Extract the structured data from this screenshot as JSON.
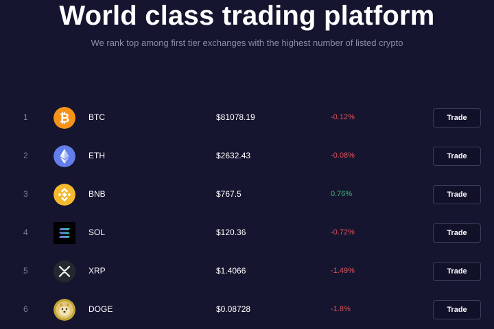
{
  "hero": {
    "title": "World class trading platform",
    "subtitle": "We rank top among first tier exchanges with the highest number of listed crypto"
  },
  "market": {
    "rows": [
      {
        "rank": "1",
        "symbol": "BTC",
        "price": "$81078.19",
        "change": "-0.12%",
        "trend": "down",
        "icon": "bitcoin-icon",
        "color": "#f7931a",
        "trade_label": "Trade"
      },
      {
        "rank": "2",
        "symbol": "ETH",
        "price": "$2632.43",
        "change": "-0.08%",
        "trend": "down",
        "icon": "ethereum-icon",
        "color": "#627eea",
        "trade_label": "Trade"
      },
      {
        "rank": "3",
        "symbol": "BNB",
        "price": "$767.5",
        "change": "0.76%",
        "trend": "up",
        "icon": "bnb-icon",
        "color": "#f3ba2f",
        "trade_label": "Trade"
      },
      {
        "rank": "4",
        "symbol": "SOL",
        "price": "$120.36",
        "change": "-0.72%",
        "trend": "down",
        "icon": "solana-icon",
        "color": "#000000",
        "trade_label": "Trade"
      },
      {
        "rank": "5",
        "symbol": "XRP",
        "price": "$1.4066",
        "change": "-1.49%",
        "trend": "down",
        "icon": "xrp-icon",
        "color": "#23292f",
        "trade_label": "Trade"
      },
      {
        "rank": "6",
        "symbol": "DOGE",
        "price": "$0.08728",
        "change": "-1.8%",
        "trend": "down",
        "icon": "dogecoin-icon",
        "color": "#c2a633",
        "trade_label": "Trade"
      }
    ]
  },
  "colors": {
    "background": "#161530",
    "negative": "#e0535a",
    "positive": "#48b27e"
  }
}
